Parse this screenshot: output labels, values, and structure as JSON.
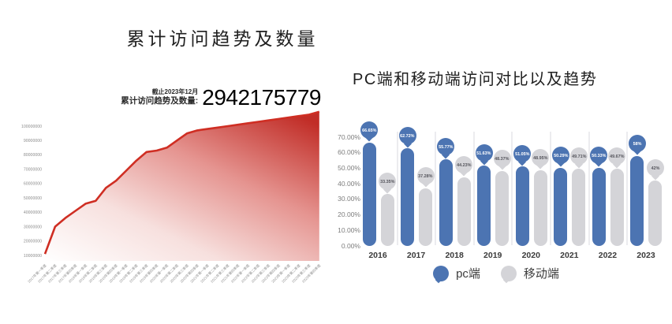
{
  "page": {
    "background": "#ffffff"
  },
  "left_chart": {
    "title": "累计访问趋势及数量",
    "stat": {
      "asof": "截止2023年12月",
      "label": "累计访问趋势及数量:",
      "value": "2942175779"
    },
    "line_color": "#cf2e23",
    "gradient_colors": [
      "#ffffff",
      "#f7e0de",
      "#e59490",
      "#c12d27"
    ],
    "axis_text_color": "#8c8c8c"
  },
  "right_chart": {
    "title": "PC端和移动端访问对比以及趋势",
    "pc_color": "#4c74b2",
    "mobile_color": "#d4d4d8",
    "separator_color": "#ececef",
    "legend": [
      {
        "name": "pc端",
        "color": "#4c74b2"
      },
      {
        "name": "移动端",
        "color": "#d4d4d8"
      }
    ]
  },
  "chart_data": [
    {
      "type": "area",
      "title": "累计访问趋势及数量",
      "annotation": {
        "asof": "截止2023年12月",
        "label": "累计访问趋势及数量:",
        "value": "2942175779"
      },
      "x": [
        "2017年第一季度",
        "2017年第二季度",
        "2017年第三季度",
        "2017年第四季度",
        "2018年第一季度",
        "2018年第二季度",
        "2018年第三季度",
        "2018年第四季度",
        "2019年第一季度",
        "2019年第二季度",
        "2019年第三季度",
        "2019年第四季度",
        "2020年第一季度",
        "2020年第二季度",
        "2020年第三季度",
        "2020年第四季度",
        "2021年第一季度",
        "2021年第二季度",
        "2021年第三季度",
        "2021年第四季度",
        "2022年第一季度",
        "2022年第二季度",
        "2022年第三季度",
        "2022年第四季度",
        "2023年第一季度",
        "2023年第二季度",
        "2023年第三季度",
        "2023年第四季度"
      ],
      "values": [
        11000000,
        30000000,
        36000000,
        41000000,
        46000000,
        48000000,
        57000000,
        62000000,
        69000000,
        76000000,
        82000000,
        83000000,
        85000000,
        90000000,
        95000000,
        97000000,
        98000000,
        99000000,
        100000000,
        101000000,
        102000000,
        103000000,
        104000000,
        105000000,
        106000000,
        107000000,
        108000000,
        110000000
      ],
      "y_ticks": [
        "100000000",
        "90000000",
        "80000000",
        "70000000",
        "60000000",
        "50000000",
        "40000000",
        "30000000",
        "20000000",
        "10000000"
      ],
      "y_tick_values": [
        100000000,
        90000000,
        80000000,
        70000000,
        60000000,
        50000000,
        40000000,
        30000000,
        20000000,
        10000000
      ],
      "ylim": [
        0,
        110000000
      ],
      "grid": false,
      "legend_position": "none"
    },
    {
      "type": "bar",
      "title": "PC端和移动端访问对比以及趋势",
      "categories": [
        "2016",
        "2017",
        "2018",
        "2019",
        "2020",
        "2021",
        "2022",
        "2023"
      ],
      "series": [
        {
          "name": "pc端",
          "color": "#4c74b2",
          "values": [
            66.65,
            62.72,
            55.77,
            51.63,
            51.05,
            50.29,
            50.33,
            58
          ],
          "labels": [
            "66.65%",
            "62.72%",
            "55.77%",
            "51.63%",
            "51.05%",
            "50.29%",
            "50.33%",
            "58%"
          ]
        },
        {
          "name": "移动端",
          "color": "#d4d4d8",
          "values": [
            33.35,
            37.28,
            44.23,
            48.37,
            48.95,
            49.71,
            49.67,
            42
          ],
          "labels": [
            "33.35%",
            "37.28%",
            "44.23%",
            "48.37%",
            "48.95%",
            "49.71%",
            "49.67%",
            "42%"
          ]
        }
      ],
      "y_ticks": [
        "0.00%",
        "10.00%",
        "20.00%",
        "30.00%",
        "40.00%",
        "50.00%",
        "60.00%",
        "70.00%"
      ],
      "y_tick_values": [
        0,
        10,
        20,
        30,
        40,
        50,
        60,
        70
      ],
      "ylim": [
        0,
        70
      ],
      "grid": false,
      "legend_position": "bottom"
    }
  ]
}
